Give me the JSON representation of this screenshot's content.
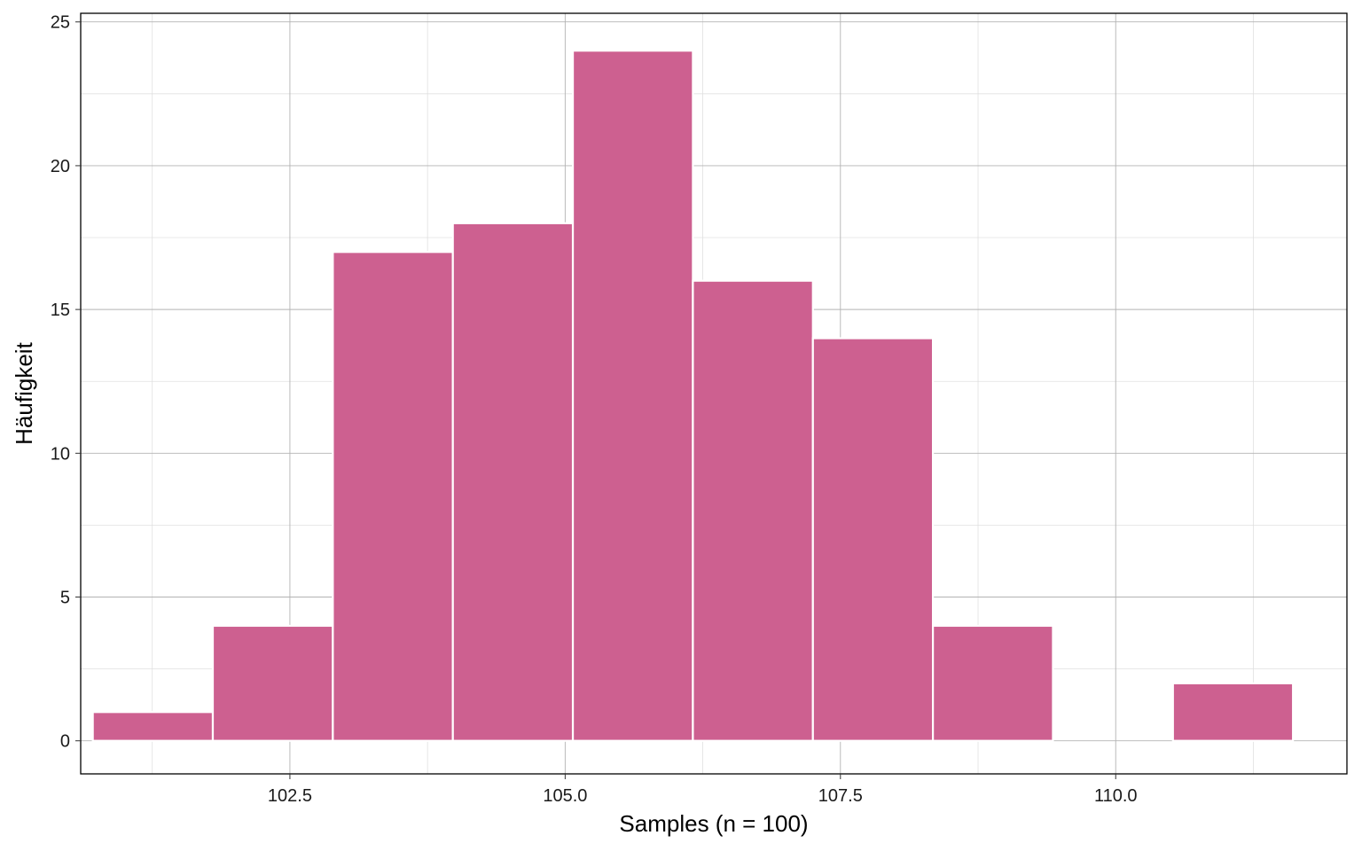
{
  "chart_data": {
    "type": "bar",
    "subtype": "histogram",
    "title": "",
    "xlabel": "Samples (n = 100)",
    "ylabel": "Häufigkeit",
    "xlim": [
      100.6,
      112.1
    ],
    "ylim": [
      -1.15,
      25.3
    ],
    "x_ticks": [
      102.5,
      105.0,
      107.5,
      110.0
    ],
    "x_tick_labels": [
      "102.5",
      "105.0",
      "107.5",
      "110.0"
    ],
    "y_ticks": [
      0,
      5,
      10,
      15,
      20,
      25
    ],
    "y_tick_labels": [
      "0",
      "5",
      "10",
      "15",
      "20",
      "25"
    ],
    "grid": true,
    "legend": "none",
    "bin_width": 1.09,
    "bins": [
      {
        "x0": 100.71,
        "x1": 101.8,
        "count": 1
      },
      {
        "x0": 101.8,
        "x1": 102.89,
        "count": 4
      },
      {
        "x0": 102.89,
        "x1": 103.98,
        "count": 17
      },
      {
        "x0": 103.98,
        "x1": 105.07,
        "count": 18
      },
      {
        "x0": 105.07,
        "x1": 106.16,
        "count": 24
      },
      {
        "x0": 106.16,
        "x1": 107.25,
        "count": 16
      },
      {
        "x0": 107.25,
        "x1": 108.34,
        "count": 14
      },
      {
        "x0": 108.34,
        "x1": 109.43,
        "count": 4
      },
      {
        "x0": 109.43,
        "x1": 110.52,
        "count": 0
      },
      {
        "x0": 110.52,
        "x1": 111.61,
        "count": 2
      }
    ],
    "colors": {
      "bar_fill": "#cd6090",
      "bar_outline": "#ffffff",
      "grid_major": "#b3b3b3",
      "grid_minor": "#e0e0e0",
      "panel_border": "#000000"
    }
  }
}
